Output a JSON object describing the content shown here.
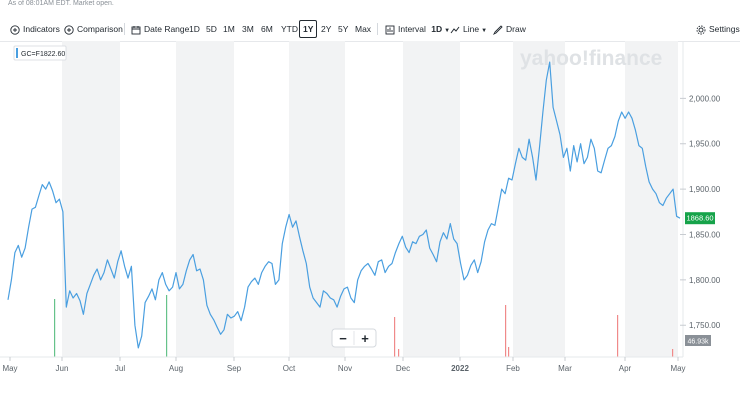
{
  "note": "As of 08:01AM EDT. Market open.",
  "toolbar": {
    "indicators": "Indicators",
    "comparison": "Comparison",
    "date_range": "Date Range",
    "ranges": [
      "1D",
      "5D",
      "1M",
      "3M",
      "6M",
      "YTD",
      "1Y",
      "2Y",
      "5Y",
      "Max"
    ],
    "active_range": "1Y",
    "interval_label": "Interval",
    "interval_value": "1D",
    "chart_type": "Line",
    "draw": "Draw",
    "settings": "Settings"
  },
  "watermark": "yahoo!finance",
  "legend": {
    "symbol": "GC=F",
    "value": "1822.60"
  },
  "zoom": {
    "minus": "−",
    "plus": "+"
  },
  "colors": {
    "line": "#4a9fe0",
    "price_tag": "#16a34a",
    "vol_up": "#66c28a",
    "vol_down": "#f08a8a",
    "shade": "#f2f3f4"
  },
  "chart_data": {
    "type": "line",
    "title": "GC=F",
    "ylim": [
      1715,
      2050
    ],
    "yticks": [
      "2,000.00",
      "1,950.00",
      "1,900.00",
      "1,850.00",
      "1,800.00",
      "1,750.00"
    ],
    "ytick_values": [
      2000,
      1950,
      1900,
      1850,
      1800,
      1750
    ],
    "xticks": [
      "May",
      "Jun",
      "Jul",
      "Aug",
      "Sep",
      "Oct",
      "Nov",
      "Dec",
      "2022",
      "Feb",
      "Mar",
      "Apr",
      "May"
    ],
    "last_price": "1868.60",
    "last_volume": "46.93k",
    "series": [
      {
        "name": "GC=F",
        "values": [
          1778,
          1800,
          1830,
          1838,
          1825,
          1835,
          1858,
          1878,
          1880,
          1893,
          1905,
          1900,
          1908,
          1898,
          1885,
          1889,
          1875,
          1770,
          1788,
          1780,
          1785,
          1777,
          1762,
          1785,
          1795,
          1805,
          1812,
          1800,
          1808,
          1822,
          1812,
          1802,
          1820,
          1832,
          1815,
          1802,
          1815,
          1750,
          1725,
          1738,
          1775,
          1782,
          1790,
          1778,
          1800,
          1808,
          1795,
          1788,
          1792,
          1808,
          1790,
          1795,
          1810,
          1822,
          1828,
          1810,
          1812,
          1800,
          1772,
          1762,
          1756,
          1748,
          1740,
          1745,
          1762,
          1758,
          1760,
          1765,
          1755,
          1770,
          1792,
          1798,
          1802,
          1795,
          1808,
          1815,
          1820,
          1818,
          1795,
          1800,
          1840,
          1858,
          1872,
          1858,
          1865,
          1848,
          1832,
          1818,
          1792,
          1780,
          1775,
          1770,
          1788,
          1785,
          1780,
          1778,
          1770,
          1782,
          1790,
          1792,
          1780,
          1775,
          1800,
          1810,
          1815,
          1818,
          1812,
          1805,
          1820,
          1822,
          1808,
          1815,
          1818,
          1830,
          1840,
          1848,
          1836,
          1830,
          1842,
          1840,
          1848,
          1850,
          1855,
          1835,
          1828,
          1820,
          1842,
          1852,
          1845,
          1862,
          1845,
          1840,
          1818,
          1800,
          1805,
          1816,
          1822,
          1808,
          1820,
          1842,
          1855,
          1862,
          1860,
          1880,
          1900,
          1895,
          1912,
          1910,
          1928,
          1945,
          1935,
          1932,
          1955,
          1935,
          1910,
          1945,
          1985,
          2020,
          2040,
          1990,
          1975,
          1960,
          1935,
          1945,
          1920,
          1948,
          1930,
          1950,
          1928,
          1935,
          1955,
          1945,
          1920,
          1918,
          1932,
          1945,
          1948,
          1958,
          1975,
          1985,
          1978,
          1985,
          1978,
          1965,
          1948,
          1945,
          1925,
          1908,
          1900,
          1895,
          1885,
          1882,
          1890,
          1895,
          1900,
          1870,
          1868
        ]
      }
    ],
    "volume_spikes": [
      {
        "label": "May-28",
        "value": "up"
      },
      {
        "label": "Jul-28",
        "value": "up"
      },
      {
        "label": "Nov-25",
        "value": "down"
      },
      {
        "label": "Nov-30",
        "value": "down"
      },
      {
        "label": "Jan-25",
        "value": "down"
      },
      {
        "label": "Jan-27",
        "value": "down"
      },
      {
        "label": "Mar-31",
        "value": "down"
      },
      {
        "label": "Apr-29",
        "value": "down"
      }
    ]
  }
}
